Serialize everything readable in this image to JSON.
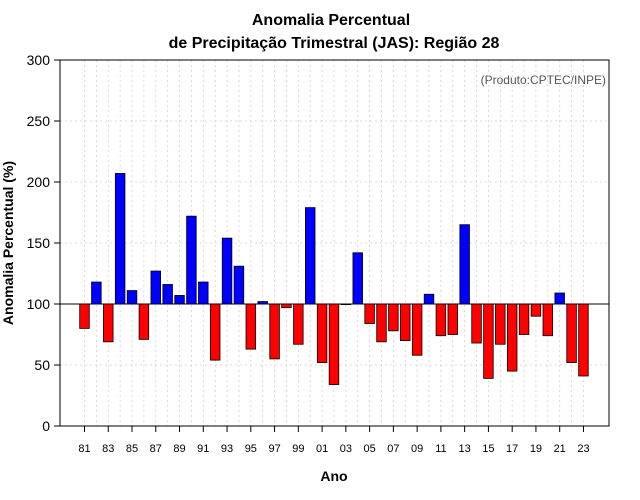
{
  "chart_data": {
    "type": "bar",
    "title_line1": "Anomalia Percentual",
    "title_line2": "de Precipitação Trimestral (JAS): Região 28",
    "xlabel": "Ano",
    "ylabel": "Anomalia Percentual (%)",
    "credit": "(Produto:CPTEC/INPE)",
    "ylim": [
      0,
      300
    ],
    "yticks": [
      0,
      50,
      100,
      150,
      200,
      250,
      300
    ],
    "baseline": 100,
    "grid": true,
    "colors": {
      "above": "#0000ff",
      "below": "#ff0000",
      "edge": "#000000"
    },
    "categories": [
      "81",
      "82",
      "83",
      "84",
      "85",
      "86",
      "87",
      "88",
      "89",
      "90",
      "91",
      "92",
      "93",
      "94",
      "95",
      "96",
      "97",
      "98",
      "99",
      "00",
      "01",
      "02",
      "03",
      "04",
      "05",
      "06",
      "07",
      "08",
      "09",
      "10",
      "11",
      "12",
      "13",
      "14",
      "15",
      "16",
      "17",
      "18",
      "19",
      "20",
      "21",
      "22",
      "23"
    ],
    "xtick_labels": [
      "81",
      "83",
      "85",
      "87",
      "89",
      "91",
      "93",
      "95",
      "97",
      "99",
      "01",
      "03",
      "05",
      "07",
      "09",
      "11",
      "13",
      "15",
      "17",
      "19",
      "21",
      "23"
    ],
    "values": [
      80,
      118,
      69,
      207,
      111,
      71,
      127,
      116,
      107,
      172,
      118,
      54,
      154,
      131,
      63,
      102,
      55,
      97,
      67,
      179,
      52,
      34,
      100,
      142,
      84,
      69,
      78,
      70,
      58,
      108,
      74,
      75,
      165,
      68,
      39,
      67,
      45,
      75,
      90,
      74,
      109,
      52,
      41
    ]
  }
}
